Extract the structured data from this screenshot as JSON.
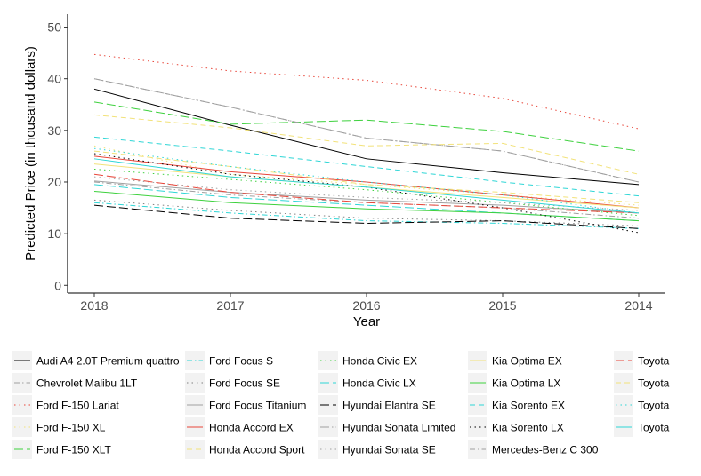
{
  "chart_data": {
    "type": "line",
    "title": "",
    "xlabel": "Year",
    "ylabel": "Predicted Price (in thousand dollars)",
    "categories": [
      "2018",
      "2017",
      "2016",
      "2015",
      "2014"
    ],
    "yticks": [
      0,
      10,
      20,
      30,
      40,
      50
    ],
    "ylim": [
      -1.5,
      52.5
    ],
    "grid": false,
    "legend_position": "bottom",
    "series": [
      {
        "name": "Audi A4 2.0T Premium quattro",
        "color": "#000000",
        "dash": "solid",
        "values": [
          38.0,
          31.0,
          24.5,
          21.8,
          19.5
        ]
      },
      {
        "name": "Chevrolet Malibu 1LT",
        "color": "#a0a0a0",
        "dash": "dashdot",
        "values": [
          20.0,
          17.5,
          16.0,
          15.0,
          13.0
        ]
      },
      {
        "name": "Ford F-150 Lariat",
        "color": "#e8463a",
        "dash": "dotted",
        "values": [
          44.7,
          41.5,
          39.7,
          36.2,
          30.3
        ]
      },
      {
        "name": "Ford F-150 XL",
        "color": "#f2e27a",
        "dash": "dotted",
        "values": [
          27.0,
          21.5,
          19.5,
          17.5,
          15.5
        ]
      },
      {
        "name": "Ford F-150 XLT",
        "color": "#3ed13e",
        "dash": "longdash",
        "values": [
          35.5,
          31.2,
          32.0,
          29.8,
          26.0
        ]
      },
      {
        "name": "Ford Focus S",
        "color": "#2fd6d6",
        "dash": "dashdot",
        "values": [
          16.0,
          14.0,
          12.5,
          12.0,
          11.0
        ]
      },
      {
        "name": "Ford Focus SE",
        "color": "#808080",
        "dash": "dotted",
        "values": [
          16.5,
          14.5,
          13.0,
          12.5,
          11.5
        ]
      },
      {
        "name": "Ford Focus Titanium",
        "color": "#a0a0a0",
        "dash": "solid",
        "values": [
          20.2,
          18.0,
          16.5,
          15.5,
          14.0
        ]
      },
      {
        "name": "Honda Accord EX",
        "color": "#e8463a",
        "dash": "solid",
        "values": [
          25.0,
          22.0,
          20.0,
          17.5,
          15.0
        ]
      },
      {
        "name": "Honda Accord Sport",
        "color": "#f2e27a",
        "dash": "dashed",
        "values": [
          26.0,
          23.0,
          19.5,
          18.0,
          16.0
        ]
      },
      {
        "name": "Honda Civic EX",
        "color": "#3ed13e",
        "dash": "dotted",
        "values": [
          22.5,
          20.5,
          18.5,
          16.0,
          13.5
        ]
      },
      {
        "name": "Honda Civic LX",
        "color": "#2fd6d6",
        "dash": "longdash",
        "values": [
          19.5,
          17.0,
          15.5,
          14.0,
          12.5
        ]
      },
      {
        "name": "Hyundai Elantra SE",
        "color": "#000000",
        "dash": "longdash",
        "values": [
          15.5,
          13.0,
          12.0,
          12.5,
          11.0
        ]
      },
      {
        "name": "Hyundai Sonata Limited",
        "color": "#a0a0a0",
        "dash": "longdashdot",
        "values": [
          40.0,
          34.5,
          28.5,
          26.0,
          20.0
        ]
      },
      {
        "name": "Hyundai Sonata SE",
        "color": "#a0a0a0",
        "dash": "dotted",
        "values": [
          21.0,
          18.5,
          17.0,
          16.0,
          14.5
        ]
      },
      {
        "name": "Kia Optima EX",
        "color": "#f2e27a",
        "dash": "solid",
        "values": [
          23.5,
          21.0,
          19.0,
          17.0,
          15.0
        ]
      },
      {
        "name": "Kia Optima LX",
        "color": "#3ed13e",
        "dash": "solid",
        "values": [
          18.2,
          16.0,
          14.8,
          14.0,
          12.5
        ]
      },
      {
        "name": "Kia Sorento EX",
        "color": "#2fd6d6",
        "dash": "dashed",
        "values": [
          28.7,
          26.0,
          23.0,
          20.0,
          17.3
        ]
      },
      {
        "name": "Kia Sorento LX",
        "color": "#000000",
        "dash": "dotted",
        "values": [
          25.5,
          21.5,
          19.0,
          15.0,
          10.2
        ]
      },
      {
        "name": "Mercedes-Benz  C 300",
        "color": "#a0a0a0",
        "dash": "dashdot",
        "values": [
          40.0,
          34.5,
          28.5,
          26.0,
          20.0
        ]
      },
      {
        "name": "Toyota",
        "color": "#e8463a",
        "dash": "longdash",
        "values": [
          21.5,
          18.0,
          16.0,
          15.0,
          14.0
        ]
      },
      {
        "name": "Toyota",
        "color": "#f2e27a",
        "dash": "dashed",
        "values": [
          33.0,
          30.5,
          27.0,
          27.5,
          21.5
        ]
      },
      {
        "name": "Toyota",
        "color": "#2fd6d6",
        "dash": "dotted",
        "values": [
          26.5,
          23.0,
          20.0,
          17.5,
          14.0
        ]
      },
      {
        "name": "Toyota",
        "color": "#2fd6d6",
        "dash": "solid",
        "values": [
          24.5,
          21.0,
          19.0,
          16.5,
          14.0
        ]
      }
    ]
  }
}
